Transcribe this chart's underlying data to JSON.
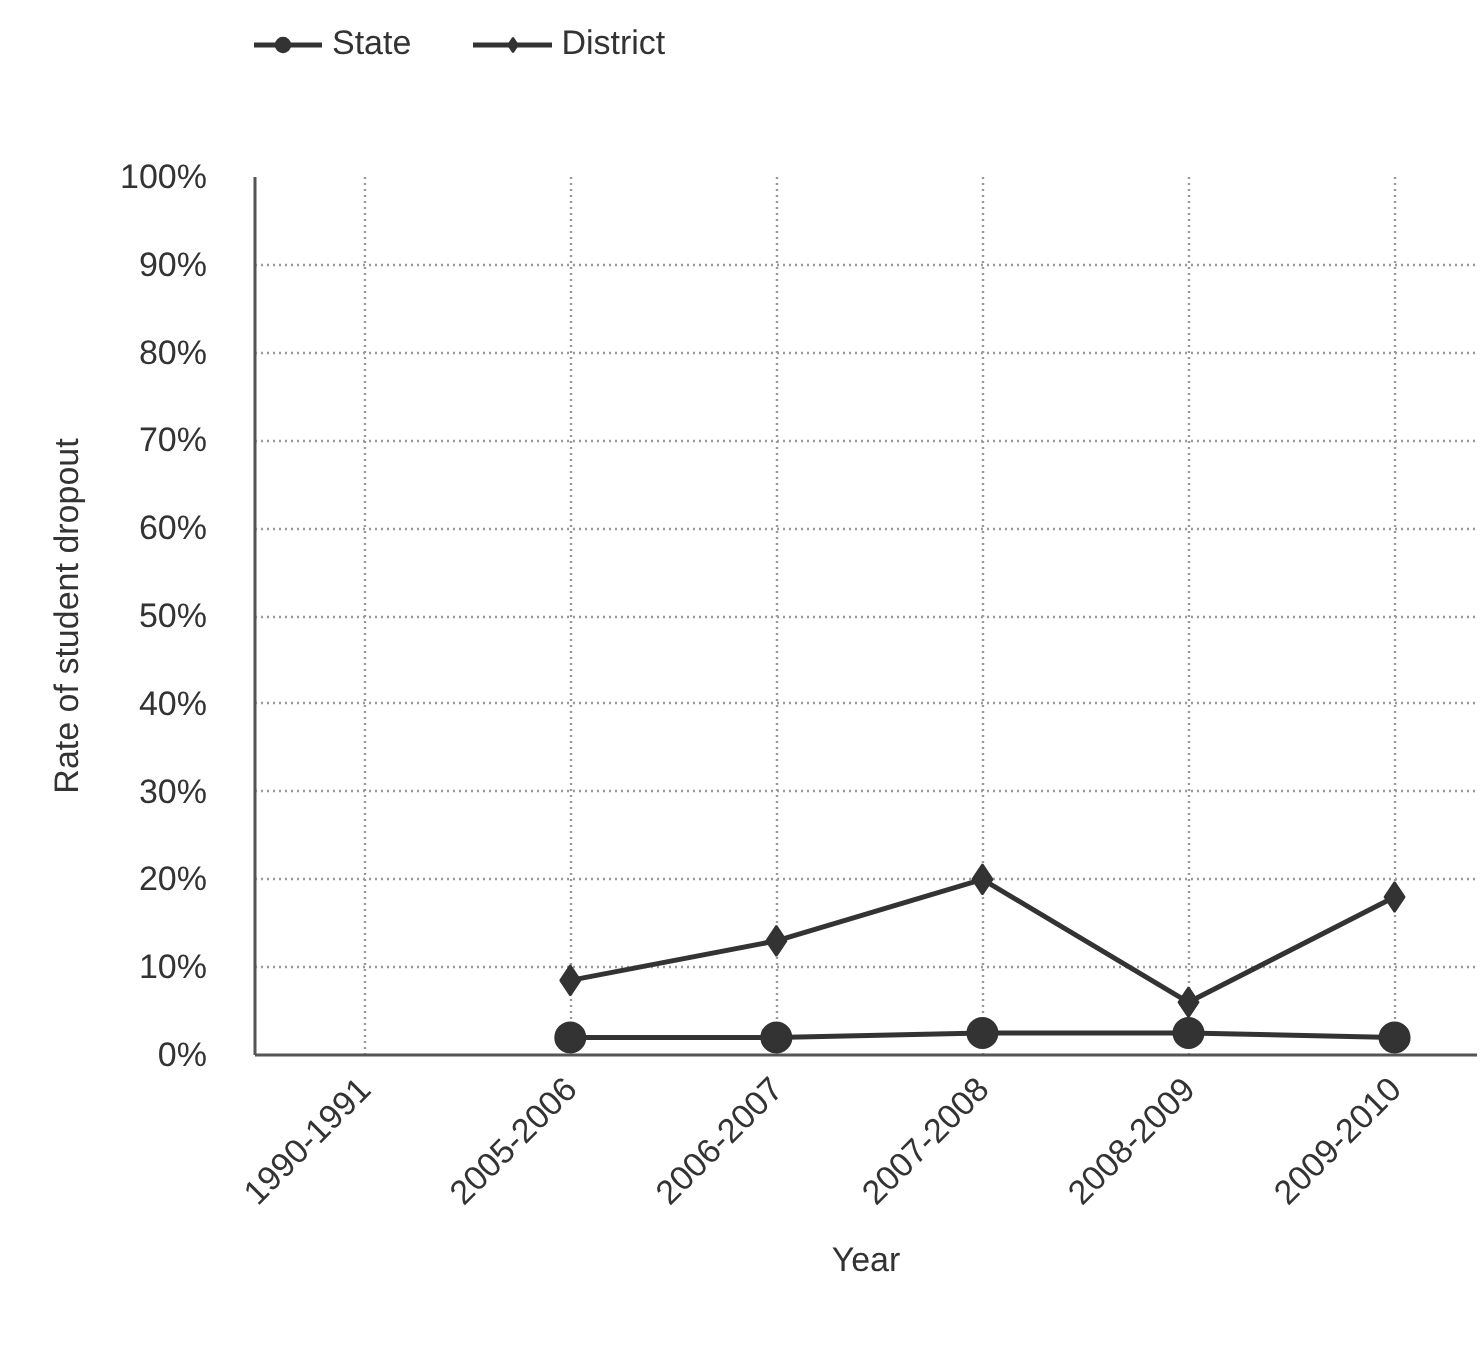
{
  "chart_data": {
    "type": "line",
    "categories": [
      "1990-1991",
      "2005-2006",
      "2006-2007",
      "2007-2008",
      "2008-2009",
      "2009-2010"
    ],
    "series": [
      {
        "name": "State",
        "color": "#333333",
        "marker": "circle",
        "values": [
          null,
          2,
          2,
          2.5,
          2.5,
          2
        ]
      },
      {
        "name": "District",
        "color": "#333333",
        "marker": "diamond",
        "values": [
          null,
          8.5,
          13,
          20,
          6,
          18
        ]
      }
    ],
    "xlabel": "Year",
    "ylabel": "Rate of student dropout",
    "ylim": [
      0,
      100
    ],
    "yticks": [
      {
        "value": 0,
        "label": "0%"
      },
      {
        "value": 10,
        "label": "10%"
      },
      {
        "value": 20,
        "label": "20%"
      },
      {
        "value": 30,
        "label": "30%"
      },
      {
        "value": 40,
        "label": "40%"
      },
      {
        "value": 50,
        "label": "50%"
      },
      {
        "value": 60,
        "label": "60%"
      },
      {
        "value": 70,
        "label": "70%"
      },
      {
        "value": 80,
        "label": "80%"
      },
      {
        "value": 90,
        "label": "90%"
      },
      {
        "value": 100,
        "label": "100%"
      }
    ],
    "grid": true,
    "legend": "top left",
    "line_style": "solid"
  }
}
